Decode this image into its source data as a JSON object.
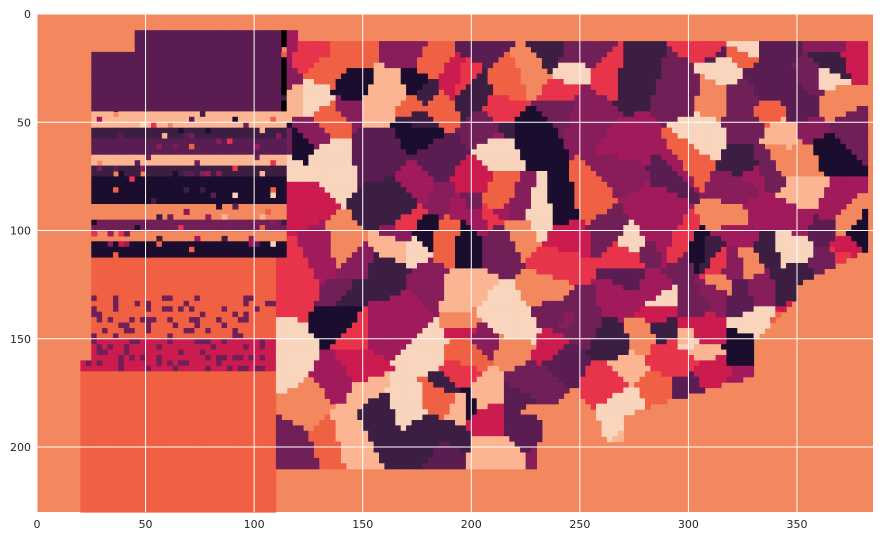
{
  "chart_data": {
    "type": "heatmap",
    "title": "",
    "xlabel": "",
    "ylabel": "",
    "xlim": [
      0,
      385
    ],
    "ylim": [
      230,
      0
    ],
    "x_ticks": [
      0,
      50,
      100,
      150,
      200,
      250,
      300,
      350
    ],
    "y_ticks": [
      0,
      50,
      100,
      150,
      200
    ],
    "grid": true,
    "colormap": "rocket",
    "background_color": "#f3875e",
    "colors": {
      "palette": [
        "#f3875e",
        "#f06043",
        "#fbb592",
        "#f9d5bd",
        "#cb1b4f",
        "#a11a5b",
        "#701f57",
        "#5a1d52",
        "#3d1e43",
        "#1a0d2e",
        "#e8344a",
        "#871d5b"
      ]
    },
    "regions": [
      {
        "label": "upper-left purple band",
        "x": [
          20,
          110
        ],
        "y": [
          5,
          45
        ],
        "color": "#5a1d52"
      },
      {
        "label": "horizontal striped area",
        "x": [
          22,
          115
        ],
        "y": [
          45,
          110
        ],
        "color": "#3d1e43"
      },
      {
        "label": "lower-left red area",
        "x": [
          0,
          105
        ],
        "y": [
          110,
          230
        ],
        "color": "#f06043"
      },
      {
        "label": "central mosaic",
        "x": [
          110,
          385
        ],
        "y": [
          15,
          200
        ],
        "color": "#701f57"
      }
    ]
  }
}
